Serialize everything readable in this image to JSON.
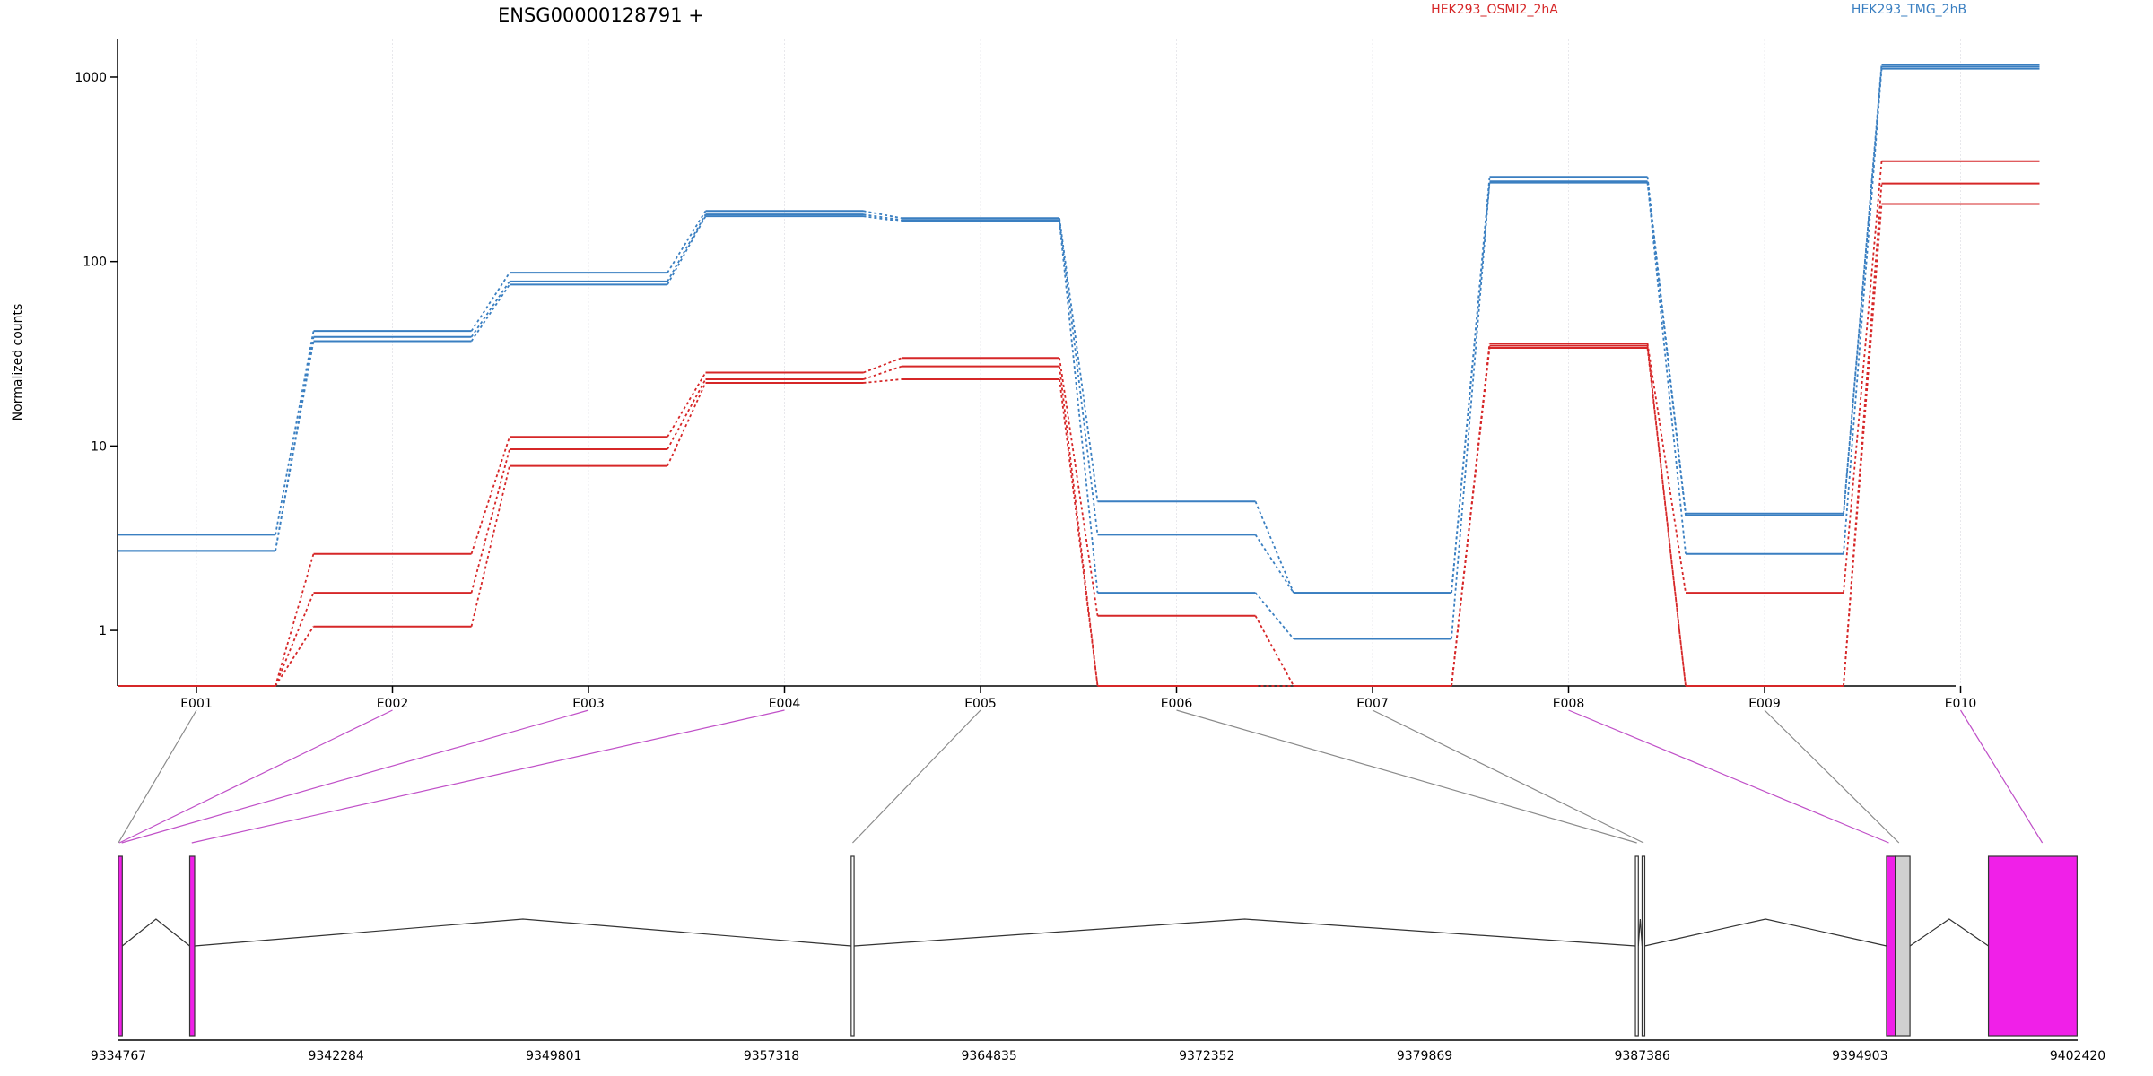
{
  "chart_data": {
    "type": "line",
    "title": "ENSG00000128791 +",
    "ylabel": "Normalized counts",
    "yscale": "log",
    "ylim": [
      0.5,
      1600
    ],
    "yticks": [
      "1",
      "10",
      "100",
      "1000"
    ],
    "ytick_values": [
      1,
      10,
      100,
      1000
    ],
    "categories": [
      "E001",
      "E002",
      "E003",
      "E004",
      "E005",
      "E006",
      "E007",
      "E008",
      "E009",
      "E010"
    ],
    "groups": [
      {
        "name": "HEK293_OSMI2_2hA",
        "color": "#d62728"
      },
      {
        "name": "HEK293_TMG_2hB",
        "color": "#3a7fc1"
      }
    ],
    "series": [
      {
        "group": 1,
        "values": [
          3.3,
          42,
          87,
          188,
          172,
          5.0,
          1.6,
          288,
          4.3,
          1170
        ]
      },
      {
        "group": 1,
        "values": [
          2.7,
          39,
          78,
          180,
          168,
          3.3,
          1.6,
          272,
          4.2,
          1140
        ]
      },
      {
        "group": 1,
        "values": [
          2.7,
          37,
          75,
          176,
          165,
          1.6,
          0.9,
          268,
          2.6,
          1110
        ]
      },
      {
        "group": 0,
        "values": [
          0.5,
          2.6,
          11.2,
          25,
          30,
          1.2,
          0.5,
          36,
          1.6,
          350
        ]
      },
      {
        "group": 0,
        "values": [
          0.5,
          1.6,
          9.6,
          23,
          27,
          0.5,
          0.5,
          35,
          0.5,
          265
        ]
      },
      {
        "group": 0,
        "values": [
          0.5,
          1.05,
          7.8,
          22,
          23,
          0.5,
          0.5,
          34,
          0.5,
          205
        ]
      }
    ],
    "genomic_axis": {
      "range": [
        9334767,
        9402420
      ],
      "ticks": [
        "9334767",
        "9342284",
        "9349801",
        "9357318",
        "9364835",
        "9372352",
        "9379869",
        "9387386",
        "9394903",
        "9402420"
      ],
      "tick_values": [
        9334767,
        9342284,
        9349801,
        9357318,
        9364835,
        9372352,
        9379869,
        9387386,
        9394903,
        9402420
      ]
    },
    "gene_model": {
      "exon_fill_colors": {
        "highlighted": "#f020e8",
        "other": "#ffffff",
        "shaded": "#d0d0d0"
      },
      "exons": [
        {
          "start": 9334767,
          "end": 9334900,
          "fill": "highlighted"
        },
        {
          "start": 9337230,
          "end": 9337400,
          "fill": "highlighted"
        },
        {
          "start": 9360070,
          "end": 9360170,
          "fill": "other"
        },
        {
          "start": 9387150,
          "end": 9387250,
          "fill": "other"
        },
        {
          "start": 9387380,
          "end": 9387470,
          "fill": "other"
        },
        {
          "start": 9395820,
          "end": 9396120,
          "fill": "highlighted"
        },
        {
          "start": 9396120,
          "end": 9396630,
          "fill": "shaded"
        },
        {
          "start": 9399340,
          "end": 9402400,
          "fill": "highlighted"
        }
      ],
      "introns": [
        {
          "from": 9334900,
          "to": 9337230
        },
        {
          "from": 9337400,
          "to": 9360070
        },
        {
          "from": 9360170,
          "to": 9387150
        },
        {
          "from": 9387250,
          "to": 9387380
        },
        {
          "from": 9387470,
          "to": 9395820
        },
        {
          "from": 9396630,
          "to": 9399340
        }
      ],
      "bin_links": [
        {
          "bin": "E001",
          "pos": 9334767,
          "highlighted": false
        },
        {
          "bin": "E002",
          "pos": 9334800,
          "highlighted": true
        },
        {
          "bin": "E003",
          "pos": 9334880,
          "highlighted": true
        },
        {
          "bin": "E004",
          "pos": 9337300,
          "highlighted": true
        },
        {
          "bin": "E005",
          "pos": 9360120,
          "highlighted": false
        },
        {
          "bin": "E006",
          "pos": 9387200,
          "highlighted": false
        },
        {
          "bin": "E007",
          "pos": 9387430,
          "highlighted": false
        },
        {
          "bin": "E008",
          "pos": 9395900,
          "highlighted": true
        },
        {
          "bin": "E009",
          "pos": 9396250,
          "highlighted": false
        },
        {
          "bin": "E010",
          "pos": 9401200,
          "highlighted": true
        }
      ]
    }
  }
}
